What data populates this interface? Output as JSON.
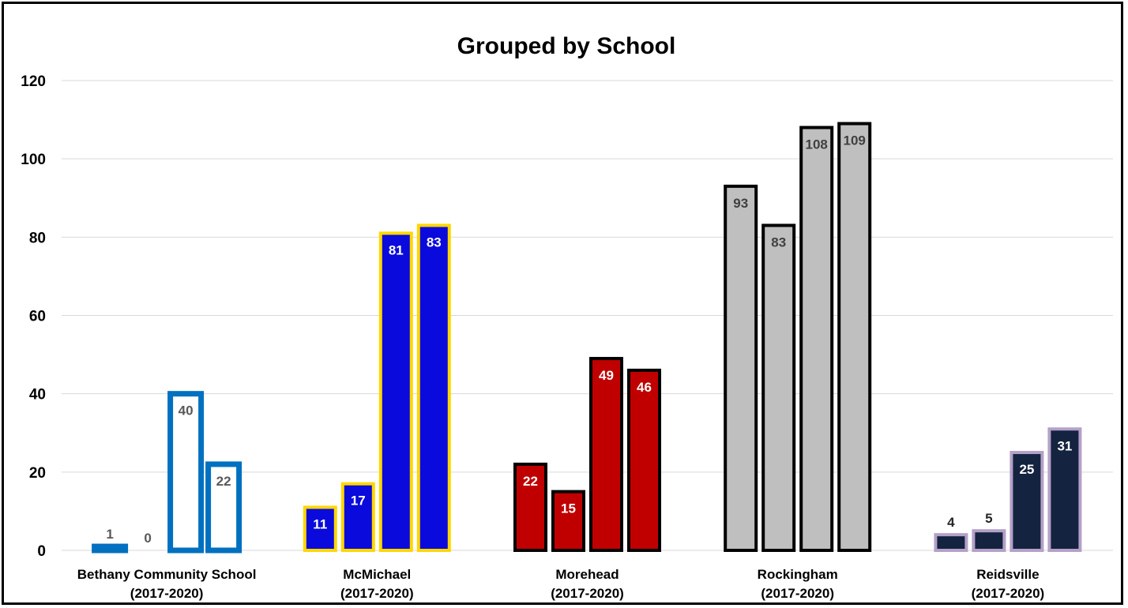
{
  "chart_data": {
    "type": "bar",
    "title": "Grouped by School",
    "xlabel": "",
    "ylabel": "",
    "ylim": [
      0,
      120
    ],
    "yticks": [
      0,
      20,
      40,
      60,
      80,
      100,
      120
    ],
    "grid": true,
    "legend": "none",
    "groups": [
      {
        "name_line1": "Bethany Community School",
        "name_line2": "(2017-2020)",
        "values": [
          1,
          0,
          40,
          22
        ],
        "labels": [
          "1",
          "0",
          "40",
          "22"
        ],
        "fill": "#ffffff",
        "stroke": "#0070c0",
        "label_color": "#595959"
      },
      {
        "name_line1": "McMichael",
        "name_line2": "(2017-2020)",
        "values": [
          11,
          17,
          81,
          83
        ],
        "labels": [
          "11",
          "17",
          "81",
          "83"
        ],
        "fill": "#0a0adc",
        "stroke": "#ffd700",
        "label_color": "#ffffff"
      },
      {
        "name_line1": "Morehead",
        "name_line2": "(2017-2020)",
        "values": [
          22,
          15,
          49,
          46
        ],
        "labels": [
          "22",
          "15",
          "49",
          "46"
        ],
        "fill": "#c00000",
        "stroke": "#000000",
        "label_color": "#ffffff"
      },
      {
        "name_line1": "Rockingham",
        "name_line2": "(2017-2020)",
        "values": [
          93,
          83,
          108,
          109
        ],
        "labels": [
          "93",
          "83",
          "108",
          "109"
        ],
        "fill": "#bfbfbf",
        "stroke": "#000000",
        "label_color": "#404040"
      },
      {
        "name_line1": "Reidsville",
        "name_line2": "(2017-2020)",
        "values": [
          4,
          5,
          25,
          31
        ],
        "labels": [
          "4",
          "5",
          "25",
          "31"
        ],
        "fill": "#14233f",
        "stroke": "#b4a0c8",
        "label_color": "#ffffff",
        "outside_label_color": "#262626"
      }
    ]
  }
}
